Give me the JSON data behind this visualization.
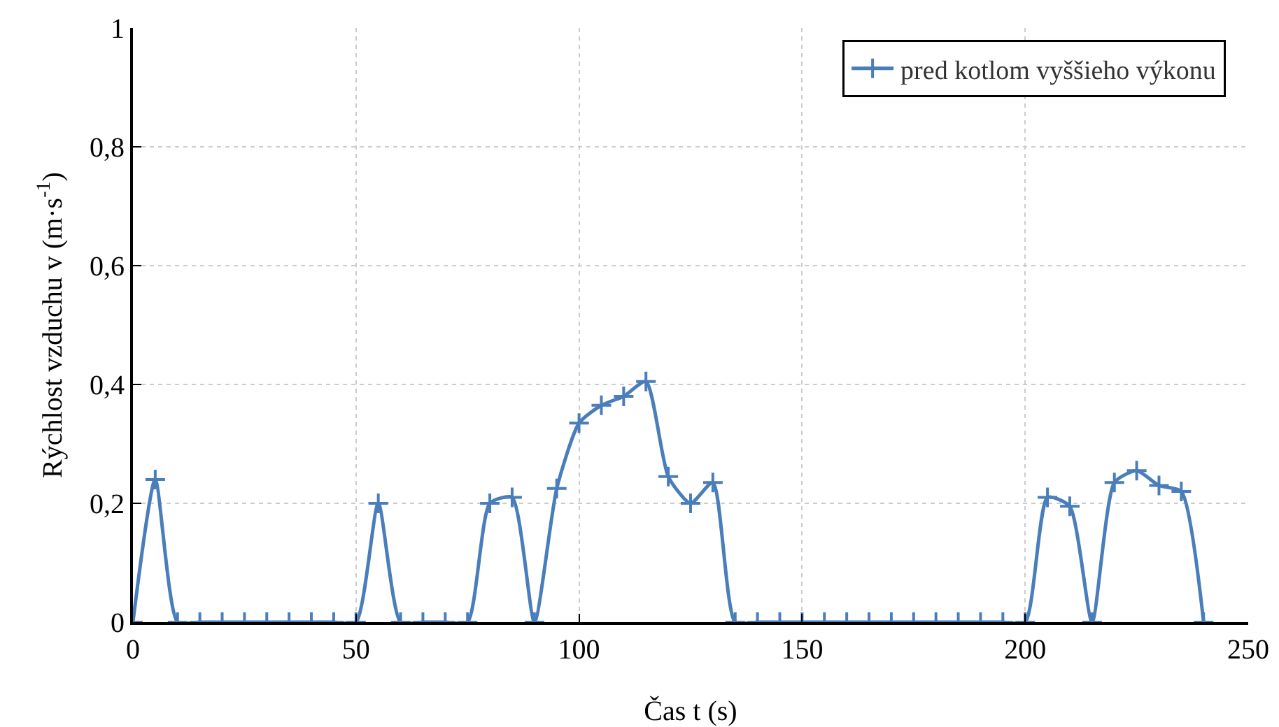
{
  "chart_data": {
    "type": "line",
    "xlabel": "Čas t (s)",
    "ylabel": "Rýchlost vzduchu v (m·s$^{-1}$)",
    "x": [
      0,
      5,
      10,
      15,
      20,
      25,
      30,
      35,
      40,
      45,
      50,
      55,
      60,
      65,
      70,
      75,
      80,
      85,
      90,
      95,
      100,
      105,
      110,
      115,
      120,
      125,
      130,
      135,
      140,
      145,
      150,
      155,
      160,
      165,
      170,
      175,
      180,
      185,
      190,
      195,
      200,
      205,
      210,
      215,
      220,
      225,
      230,
      235,
      240
    ],
    "series": [
      {
        "name": "pred kotlom vyššieho výkonu",
        "color": "#4a7ebb",
        "values": [
          0,
          0.24,
          0,
          0,
          0,
          0,
          0,
          0,
          0,
          0,
          0,
          0.2,
          0,
          0,
          0,
          0,
          0.2,
          0.21,
          0,
          0.225,
          0.335,
          0.365,
          0.38,
          0.405,
          0.245,
          0.2,
          0.235,
          0,
          0,
          0,
          0,
          0,
          0,
          0,
          0,
          0,
          0,
          0,
          0,
          0,
          0,
          0.21,
          0.195,
          0,
          0.235,
          0.255,
          0.23,
          0.22,
          0
        ]
      }
    ],
    "xlim": [
      0,
      250
    ],
    "xticks": [
      0,
      50,
      100,
      150,
      200,
      250
    ],
    "ylim": [
      0,
      1
    ],
    "yticks": [
      0,
      {
        "value": 0.2,
        "label": "0,2"
      },
      {
        "value": 0.4,
        "label": "0,4"
      },
      {
        "value": 0.6,
        "label": "0,6"
      },
      {
        "value": 0.8,
        "label": "0,8"
      },
      1
    ],
    "grid": true,
    "legend": "top right",
    "marker": "cross",
    "line_style": "solid"
  }
}
